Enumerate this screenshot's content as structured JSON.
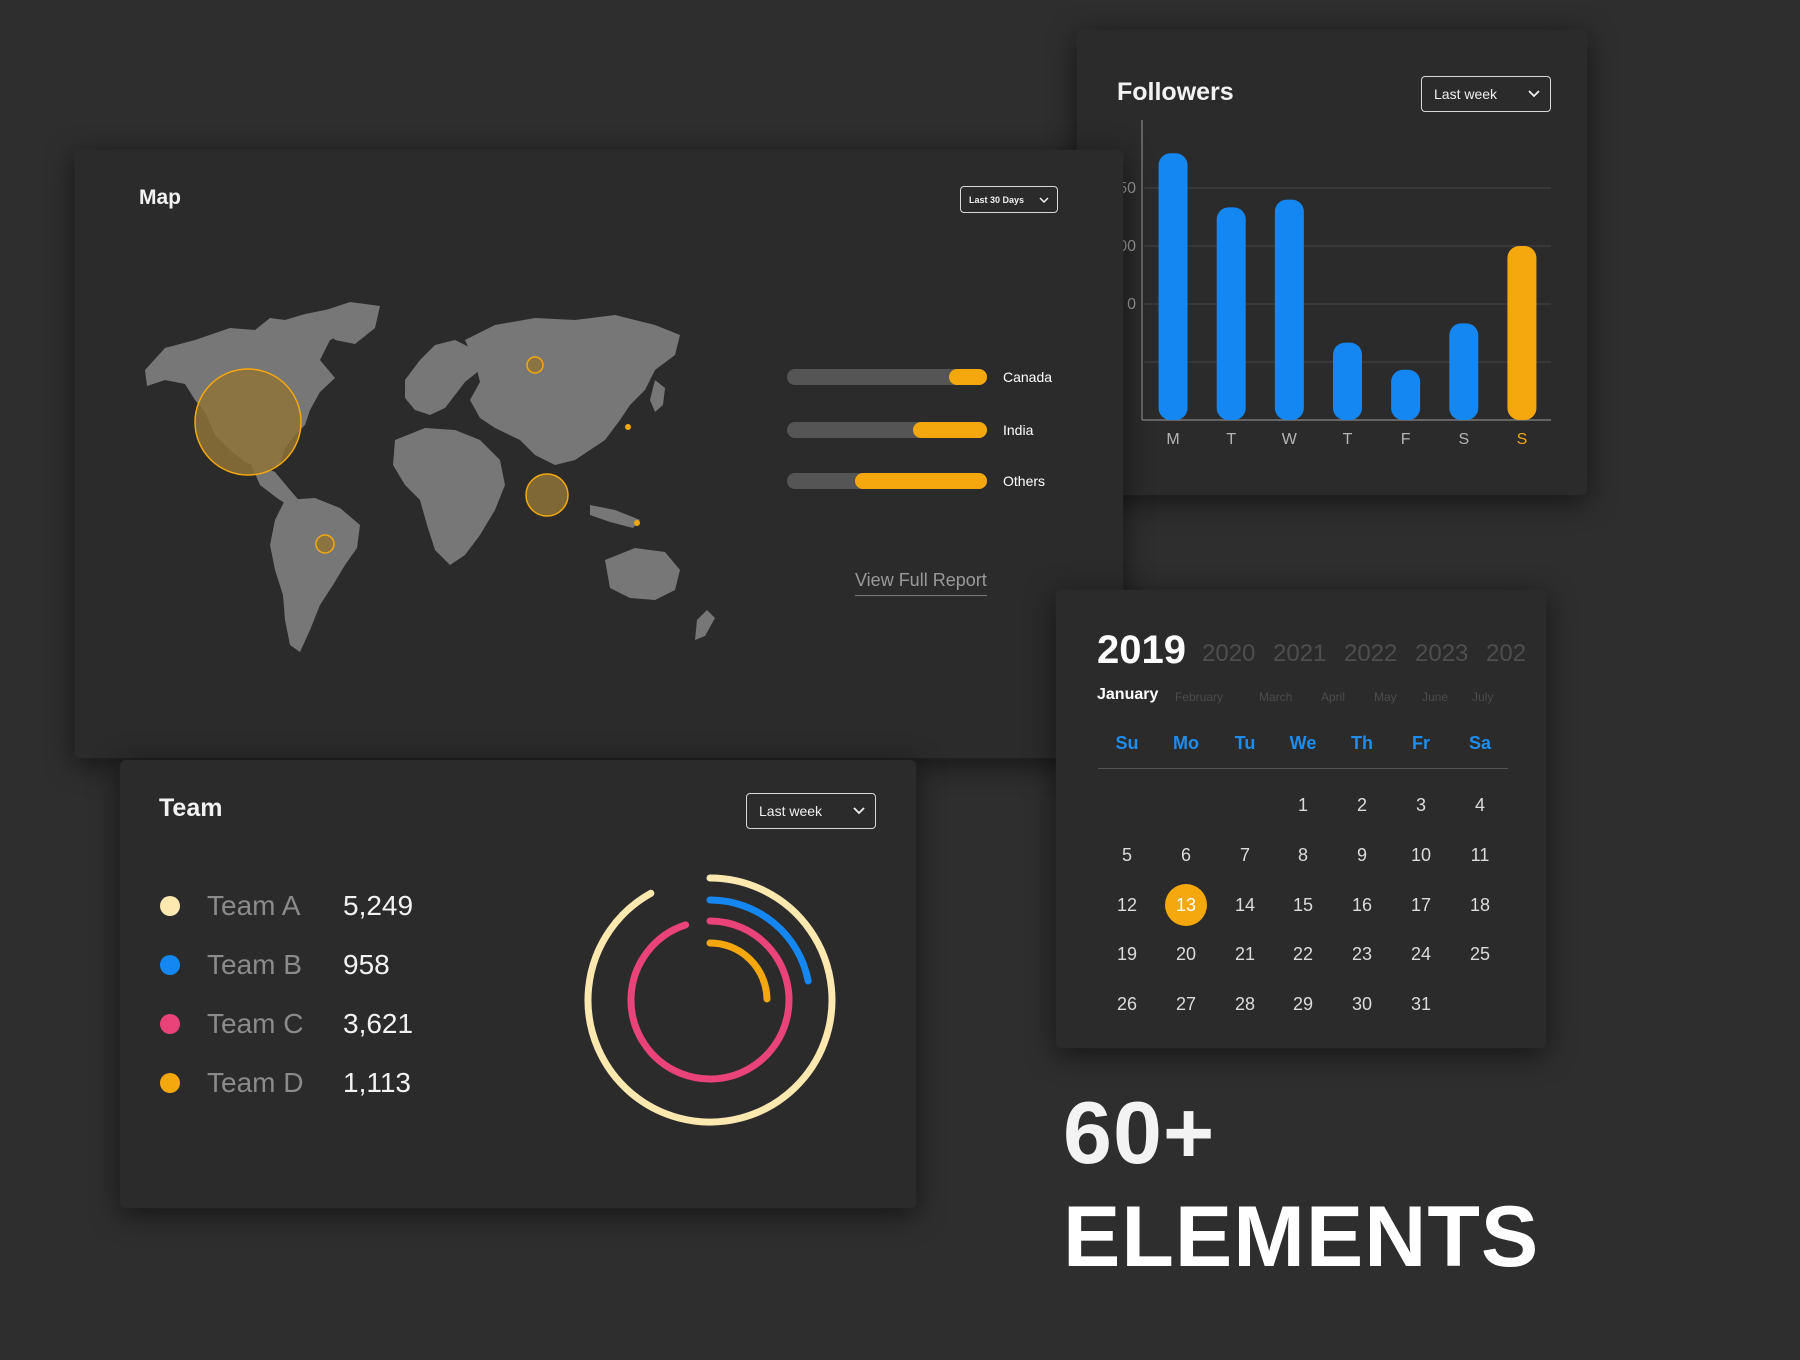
{
  "map": {
    "title": "Map",
    "range_label": "Last 30 Days",
    "countries": [
      {
        "label": "Canada",
        "fraction": 0.19
      },
      {
        "label": "India",
        "fraction": 0.37
      },
      {
        "label": "Others",
        "fraction": 0.66
      }
    ],
    "view_report_label": "View Full Report",
    "accent": "#f5a80d"
  },
  "followers": {
    "title": "Followers",
    "range_label": "Last week",
    "chart_data": {
      "type": "bar",
      "categories": [
        "M",
        "T",
        "W",
        "T",
        "F",
        "S",
        "S"
      ],
      "values": [
        69,
        55,
        57,
        20,
        13,
        25,
        45
      ],
      "ytick_labels": [
        "50",
        "00",
        "0"
      ],
      "ylim": [
        0,
        75
      ],
      "grid": true,
      "colors": [
        "#1487f3",
        "#1487f3",
        "#1487f3",
        "#1487f3",
        "#1487f3",
        "#1487f3",
        "#f5a80d"
      ],
      "highlight_index": 6
    }
  },
  "calendar": {
    "years": [
      "2019",
      "2020",
      "2021",
      "2022",
      "2023",
      "202"
    ],
    "months": [
      "January",
      "February",
      "March",
      "April",
      "May",
      "June",
      "July"
    ],
    "weekdays": [
      "Su",
      "Mo",
      "Tu",
      "We",
      "Th",
      "Fr",
      "Sa"
    ],
    "first_weekday": 3,
    "days_in_month": 31,
    "selected_day": 13
  },
  "team": {
    "title": "Team",
    "range_label": "Last week",
    "members": [
      {
        "name": "Team A",
        "value": "5,249",
        "color": "#fde8b0"
      },
      {
        "name": "Team B",
        "value": "958",
        "color": "#1487f3"
      },
      {
        "name": "Team C",
        "value": "3,621",
        "color": "#e9437a"
      },
      {
        "name": "Team D",
        "value": "1,113",
        "color": "#f5a80d"
      }
    ]
  },
  "promo": {
    "line1": "60+",
    "line2": "ELEMENTS"
  }
}
